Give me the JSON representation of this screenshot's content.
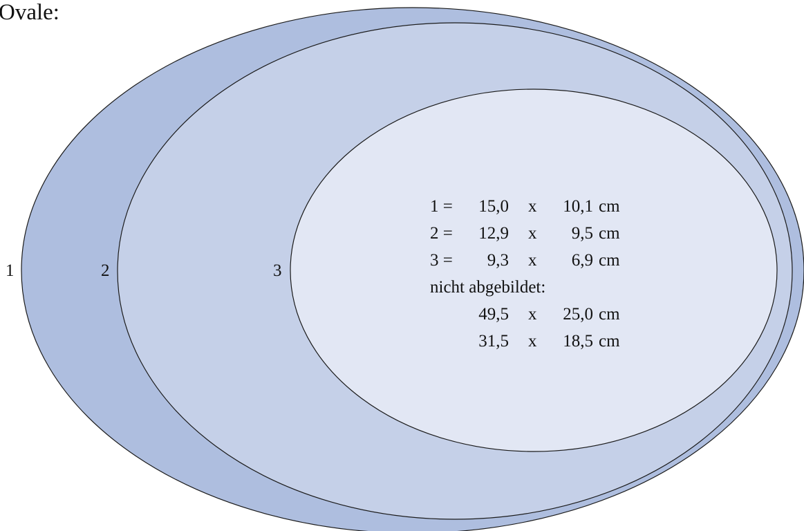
{
  "title": "Ovale:",
  "colors": {
    "oval_1": "#AEBEDF",
    "oval_2": "#C5D0E8",
    "oval_3": "#E2E7F4",
    "outline": "#1A1A1A"
  },
  "ovals": [
    {
      "label": "1"
    },
    {
      "label": "2"
    },
    {
      "label": "3"
    }
  ],
  "sizes": [
    {
      "id": "1 =",
      "w": "15,0",
      "x": "x",
      "h": "10,1",
      "unit": "cm"
    },
    {
      "id": "2 =",
      "w": "12,9",
      "x": "x",
      "h": "9,5",
      "unit": "cm"
    },
    {
      "id": "3 =",
      "w": "9,3",
      "x": "x",
      "h": "6,9",
      "unit": "cm"
    }
  ],
  "not_shown_label": "nicht abgebildet:",
  "not_shown_sizes": [
    {
      "w": "49,5",
      "x": "x",
      "h": "25,0",
      "unit": "cm"
    },
    {
      "w": "31,5",
      "x": "x",
      "h": "18,5",
      "unit": "cm"
    }
  ]
}
